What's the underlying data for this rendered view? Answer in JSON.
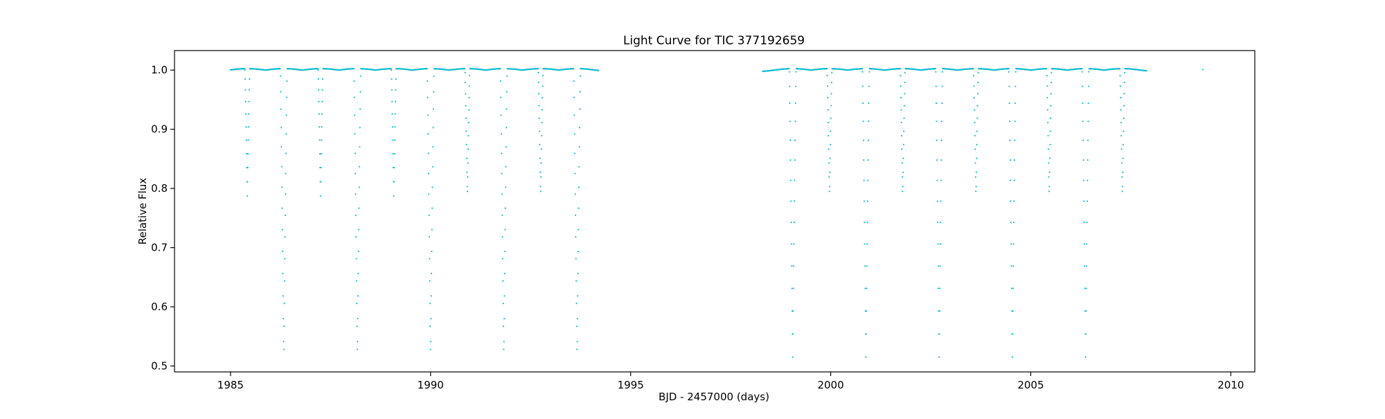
{
  "chart_data": {
    "type": "scatter",
    "title": "Light Curve for TIC 377192659",
    "xlabel": "BJD - 2457000 (days)",
    "ylabel": "Relative Flux",
    "xlim": [
      1983.6,
      2010.6
    ],
    "ylim": [
      0.49,
      1.033
    ],
    "x_ticks": [
      1985,
      1990,
      1995,
      2000,
      2005,
      2010
    ],
    "x_tick_labels": [
      "1985",
      "1990",
      "1995",
      "2000",
      "2005",
      "2010"
    ],
    "y_ticks": [
      0.5,
      0.6,
      0.7,
      0.8,
      0.9,
      1.0
    ],
    "y_tick_labels": [
      "0.5",
      "0.6",
      "0.7",
      "0.8",
      "0.9",
      "1.0"
    ],
    "grid": false,
    "color": "#17becf",
    "series": [
      {
        "segments": [
          [
            1985.0,
            1994.2
          ],
          [
            1998.3,
            2007.9
          ]
        ],
        "baseline": 1.0,
        "out_of_eclipse_amplitude": 0.005,
        "primary_eclipses": {
          "times": [
            1986.33,
            1988.17,
            1990.0,
            1991.83,
            1993.66,
            1999.05,
            2000.88,
            2002.71,
            2004.54,
            2006.37
          ],
          "min_flux": 0.515
        },
        "secondary_eclipses": {
          "times": [
            1985.42,
            1987.25,
            1989.08,
            1990.92,
            1992.75,
            1999.97,
            2001.8,
            2003.63,
            2005.46,
            2007.29
          ],
          "min_flux": 0.787
        },
        "extra_points": [
          [
            2009.3,
            1.001
          ]
        ]
      }
    ]
  }
}
